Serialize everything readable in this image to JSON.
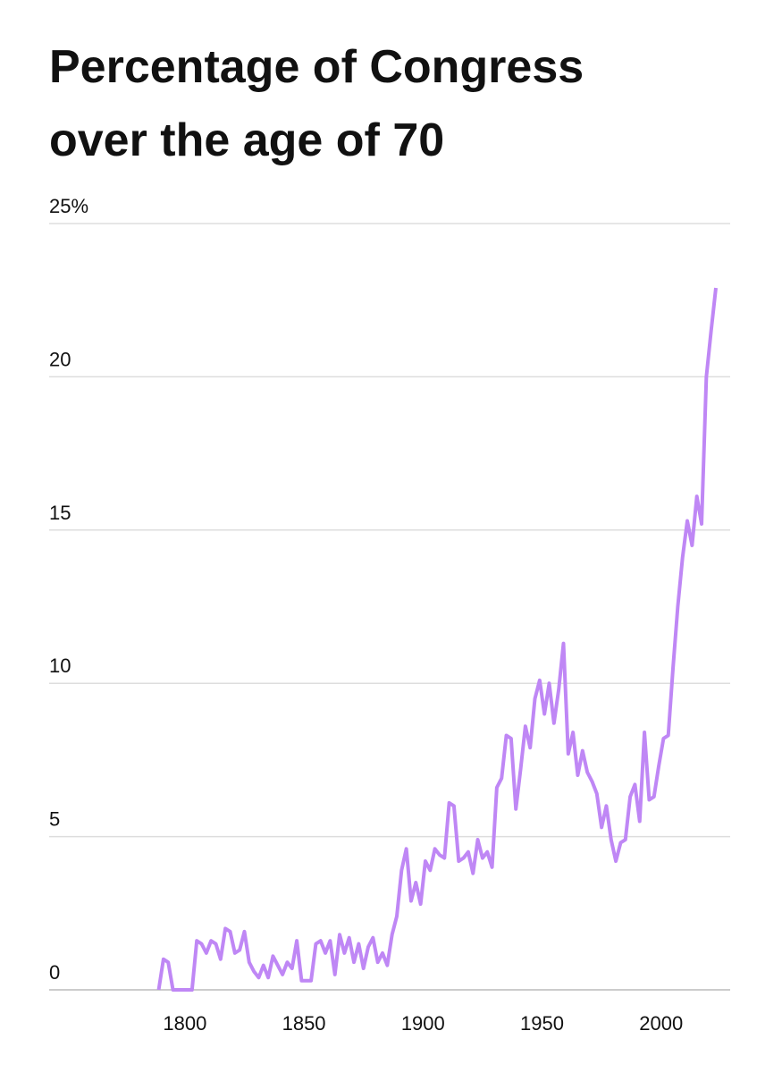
{
  "chart_data": {
    "type": "line",
    "title": [
      "Percentage of Congress",
      "over the age of 70"
    ],
    "x": [
      1789,
      1791,
      1793,
      1795,
      1797,
      1799,
      1801,
      1803,
      1805,
      1807,
      1809,
      1811,
      1813,
      1815,
      1817,
      1819,
      1821,
      1823,
      1825,
      1827,
      1829,
      1831,
      1833,
      1835,
      1837,
      1839,
      1841,
      1843,
      1845,
      1847,
      1849,
      1851,
      1853,
      1855,
      1857,
      1859,
      1861,
      1863,
      1865,
      1867,
      1869,
      1871,
      1873,
      1875,
      1877,
      1879,
      1881,
      1883,
      1885,
      1887,
      1889,
      1891,
      1893,
      1895,
      1897,
      1899,
      1901,
      1903,
      1905,
      1907,
      1909,
      1911,
      1913,
      1915,
      1917,
      1919,
      1921,
      1923,
      1925,
      1927,
      1929,
      1931,
      1933,
      1935,
      1937,
      1939,
      1941,
      1943,
      1945,
      1947,
      1949,
      1951,
      1953,
      1955,
      1957,
      1959,
      1961,
      1963,
      1965,
      1967,
      1969,
      1971,
      1973,
      1975,
      1977,
      1979,
      1981,
      1983,
      1985,
      1987,
      1989,
      1991,
      1993,
      1995,
      1997,
      1999,
      2001,
      2003,
      2005,
      2007,
      2009,
      2011,
      2013,
      2015,
      2017,
      2019,
      2021,
      2023
    ],
    "series": [
      {
        "color": "#bf87f5",
        "values": [
          0,
          1.0,
          0.9,
          0,
          0,
          0,
          0,
          0,
          1.6,
          1.5,
          1.2,
          1.6,
          1.5,
          1.0,
          2.0,
          1.9,
          1.2,
          1.3,
          1.9,
          0.9,
          0.6,
          0.4,
          0.8,
          0.4,
          1.1,
          0.8,
          0.5,
          0.9,
          0.7,
          1.6,
          0.3,
          0.3,
          0.3,
          1.5,
          1.6,
          1.2,
          1.6,
          0.5,
          1.8,
          1.2,
          1.7,
          0.9,
          1.5,
          0.7,
          1.4,
          1.7,
          0.9,
          1.2,
          0.8,
          1.8,
          2.4,
          3.9,
          4.6,
          2.9,
          3.5,
          2.8,
          4.2,
          3.9,
          4.6,
          4.4,
          4.3,
          6.1,
          6.0,
          4.2,
          4.3,
          4.5,
          3.8,
          4.9,
          4.3,
          4.5,
          4.0,
          6.6,
          6.9,
          8.3,
          8.2,
          5.9,
          7.2,
          8.6,
          7.9,
          9.5,
          10.1,
          9.0,
          10.0,
          8.7,
          9.8,
          11.3,
          7.7,
          8.4,
          7.0,
          7.8,
          7.1,
          6.8,
          6.4,
          5.3,
          6.0,
          4.9,
          4.2,
          4.8,
          4.9,
          6.3,
          6.7,
          5.5,
          8.4,
          6.2,
          6.3,
          7.3,
          8.2,
          8.3,
          10.5,
          12.5,
          14.1,
          15.3,
          14.5,
          16.1,
          15.2,
          20.0,
          21.5,
          22.9
        ]
      }
    ],
    "xlim": [
      1743,
      2029
    ],
    "xticks": [
      1800,
      1850,
      1900,
      1950,
      2000
    ],
    "ylim": [
      0,
      25
    ],
    "yticks": [
      0,
      5,
      10,
      15,
      20,
      {
        "value": 25,
        "label": "25%"
      }
    ],
    "grid": true
  }
}
